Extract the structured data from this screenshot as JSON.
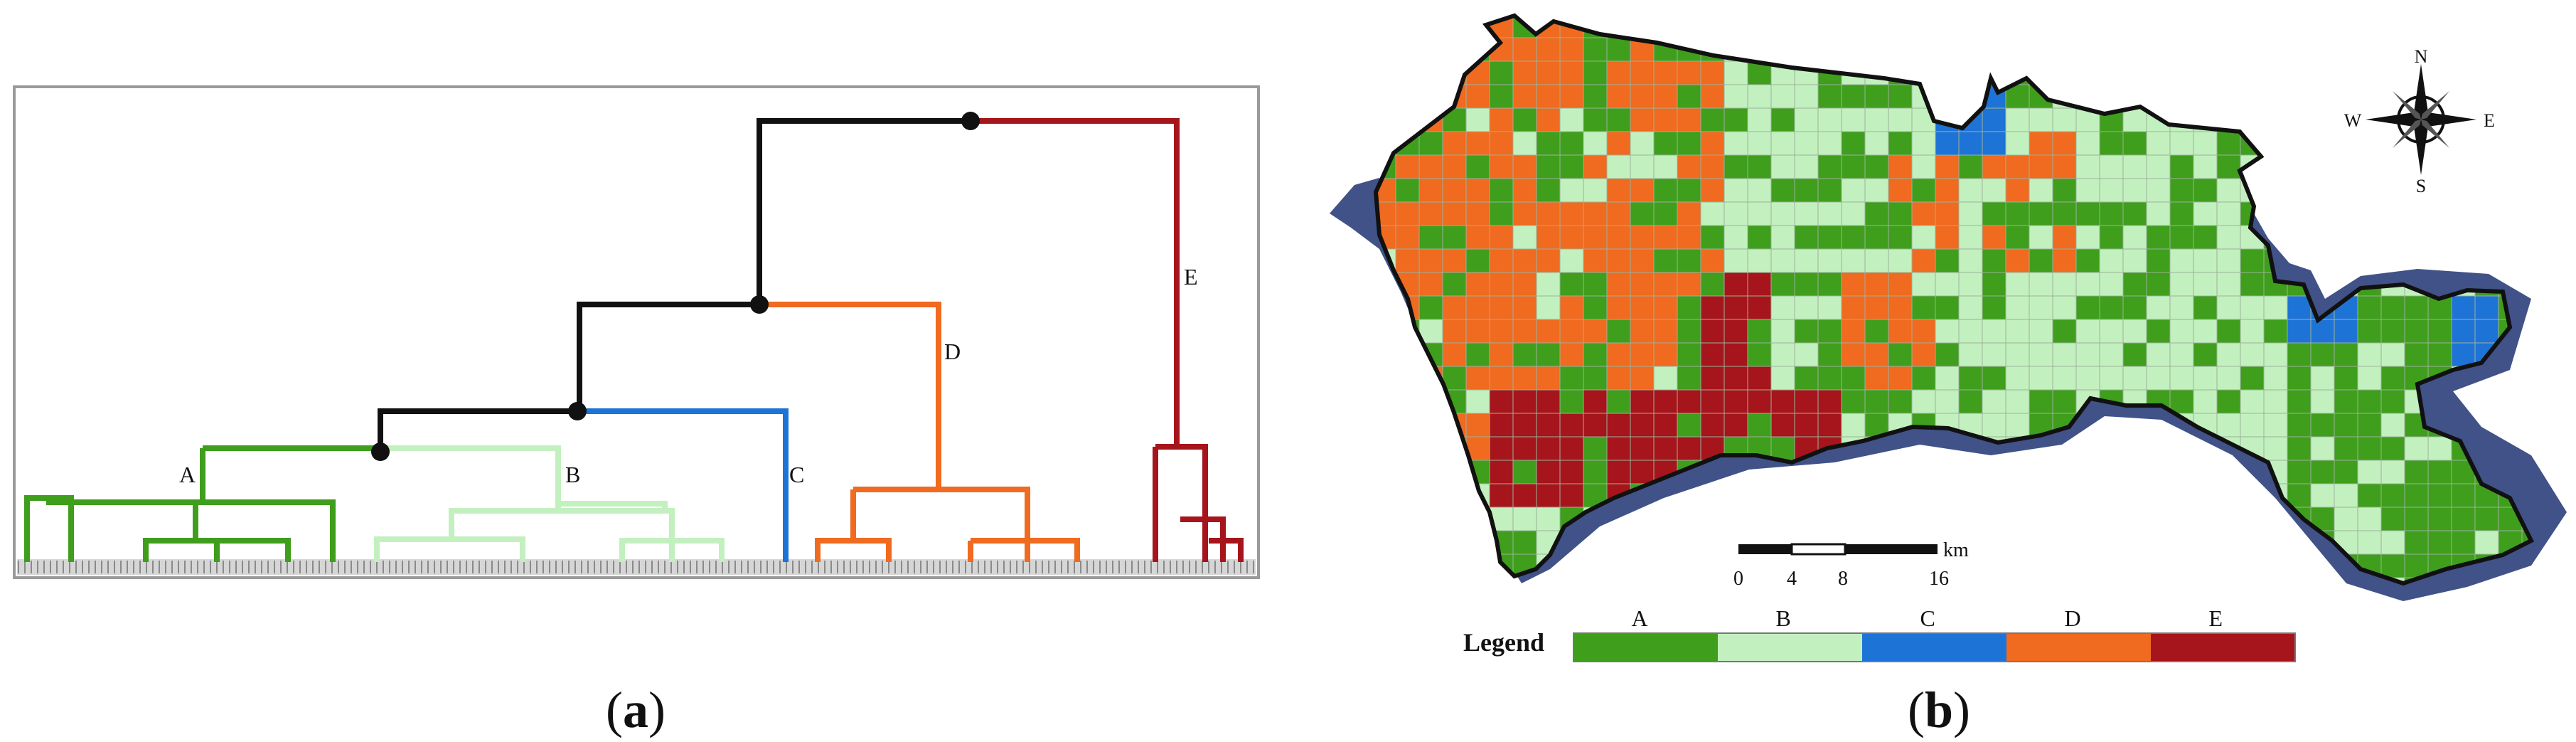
{
  "colors": {
    "A": "#3f9e1c",
    "B": "#c3f0bf",
    "C": "#1e73d6",
    "D": "#f06a1f",
    "E": "#a5151b",
    "link": "#111111",
    "water": "#2b3f7a",
    "frame": "#9a9a9a"
  },
  "panel_a": {
    "caption_open": "(",
    "caption_letter": "a",
    "caption_close": ")",
    "cluster_labels": {
      "A": "A",
      "B": "B",
      "C": "C",
      "D": "D",
      "E": "E"
    }
  },
  "panel_b": {
    "caption_open": "(",
    "caption_letter": "b",
    "caption_close": ")",
    "compass": {
      "north": "N",
      "south": "S",
      "east": "E",
      "west": "W"
    },
    "scale_bar": {
      "unit": "km",
      "ticks": [
        "0",
        "4",
        "8",
        "16"
      ]
    },
    "legend": {
      "title": "Legend",
      "classes": [
        {
          "label": "A",
          "color": "#3f9e1c"
        },
        {
          "label": "B",
          "color": "#c3f0bf"
        },
        {
          "label": "C",
          "color": "#1e73d6"
        },
        {
          "label": "D",
          "color": "#f06a1f"
        },
        {
          "label": "E",
          "color": "#a5151b"
        }
      ]
    }
  }
}
